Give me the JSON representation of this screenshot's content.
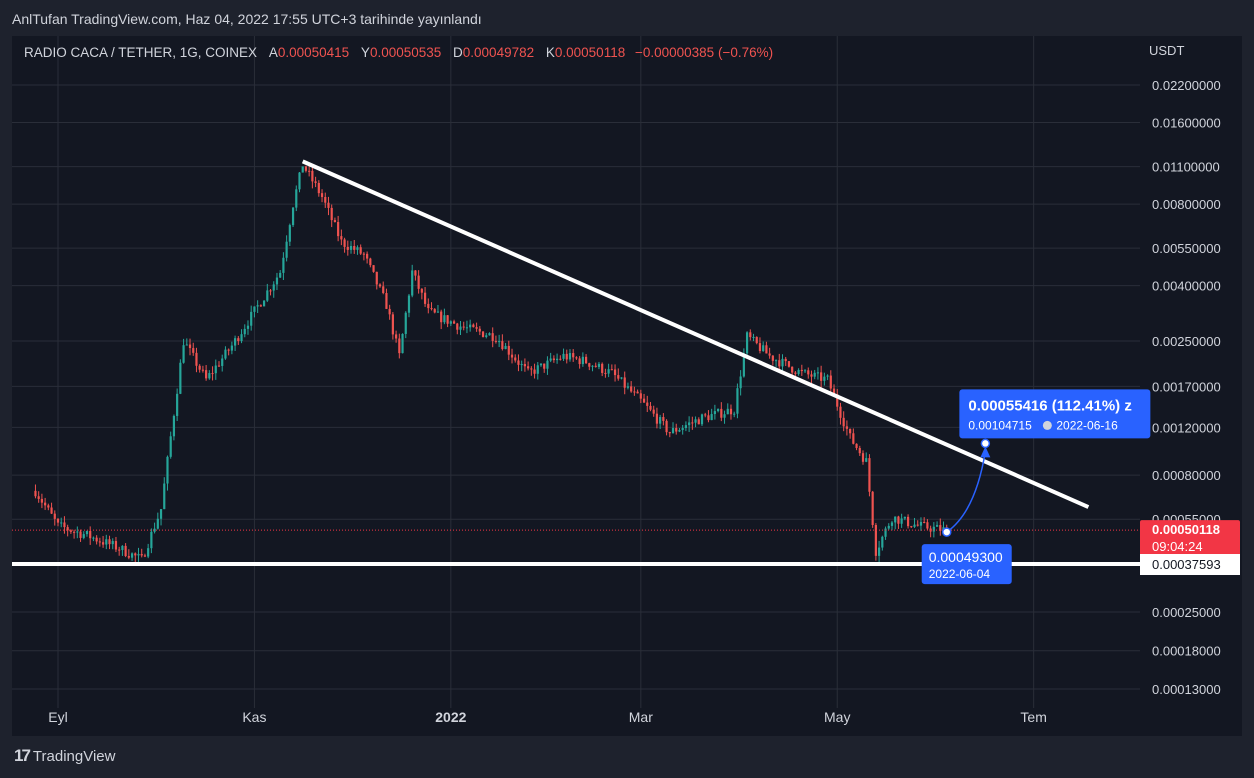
{
  "caption": "AnlTufan TradingView.com, Haz 04, 2022 17:55 UTC+3 tarihinde yayınlandı",
  "legend": {
    "symbol": "RADIO CACA / TETHER, 1G, COINEX",
    "open_label": "A",
    "open": "0.00050415",
    "high_label": "Y",
    "high": "0.00050535",
    "low_label": "D",
    "low": "0.00049782",
    "close_label": "K",
    "close": "0.00050118",
    "change": "−0.00000385 (−0.76%)"
  },
  "currency": "USDT",
  "brand": "TradingView",
  "chart_data": {
    "type": "candlestick",
    "y_scale": "log",
    "y_ticks": [
      "0.02200000",
      "0.01600000",
      "0.01100000",
      "0.00800000",
      "0.00550000",
      "0.00400000",
      "0.00250000",
      "0.00170000",
      "0.00120000",
      "0.00080000",
      "0.00055000",
      "0.00025000",
      "0.00018000",
      "0.00013000"
    ],
    "x_ticks": [
      "Eyl",
      "Kas",
      "2022",
      "Mar",
      "May",
      "Tem"
    ],
    "price_path": [
      [
        "2021-08-25",
        0.0007
      ],
      [
        "2021-09-01",
        0.00052
      ],
      [
        "2021-09-10",
        0.00048
      ],
      [
        "2021-09-20",
        0.00043
      ],
      [
        "2021-09-27",
        0.00039
      ],
      [
        "2021-10-03",
        0.0006
      ],
      [
        "2021-10-10",
        0.0025
      ],
      [
        "2021-10-17",
        0.0018
      ],
      [
        "2021-10-25",
        0.0024
      ],
      [
        "2021-11-03",
        0.0035
      ],
      [
        "2021-11-09",
        0.0045
      ],
      [
        "2021-11-13",
        0.008
      ],
      [
        "2021-11-16",
        0.0112
      ],
      [
        "2021-11-22",
        0.0085
      ],
      [
        "2021-11-28",
        0.0058
      ],
      [
        "2021-12-05",
        0.0052
      ],
      [
        "2021-12-12",
        0.0034
      ],
      [
        "2021-12-16",
        0.0022
      ],
      [
        "2021-12-20",
        0.0045
      ],
      [
        "2021-12-25",
        0.0032
      ],
      [
        "2022-01-05",
        0.0028
      ],
      [
        "2022-01-15",
        0.0026
      ],
      [
        "2022-01-25",
        0.0019
      ],
      [
        "2022-02-05",
        0.0022
      ],
      [
        "2022-02-12",
        0.0021
      ],
      [
        "2022-02-20",
        0.0019
      ],
      [
        "2022-03-01",
        0.0015
      ],
      [
        "2022-03-10",
        0.00115
      ],
      [
        "2022-03-20",
        0.0013
      ],
      [
        "2022-03-30",
        0.0014
      ],
      [
        "2022-04-03",
        0.0026
      ],
      [
        "2022-04-10",
        0.0022
      ],
      [
        "2022-04-20",
        0.0019
      ],
      [
        "2022-04-28",
        0.0018
      ],
      [
        "2022-05-05",
        0.0011
      ],
      [
        "2022-05-10",
        0.0009
      ],
      [
        "2022-05-13",
        0.00042
      ],
      [
        "2022-05-18",
        0.00056
      ],
      [
        "2022-05-26",
        0.00052
      ],
      [
        "2022-06-04",
        0.000501
      ]
    ],
    "trendlines": [
      {
        "name": "resistance",
        "from": [
          "2021-11-16",
          0.0115
        ],
        "to": [
          "2022-07-18",
          0.00061
        ]
      },
      {
        "name": "support",
        "value": 0.00037593
      }
    ],
    "markers": {
      "current_price": "0.00050118",
      "current_countdown": "09:04:24",
      "support_label": "0.00037593",
      "projection_target": "0.00055416 (112.41%) z",
      "projection_sub_price": "0.00104715",
      "projection_sub_date": "2022-06-16",
      "projection_target_value": 0.00104715,
      "projection_base": "0.00049300",
      "projection_base_date": "2022-06-04"
    },
    "colors": {
      "up": "#26a69a",
      "down": "#ef5350",
      "line": "#ffffff",
      "label": "#2962ff",
      "price": "#f23645"
    }
  }
}
